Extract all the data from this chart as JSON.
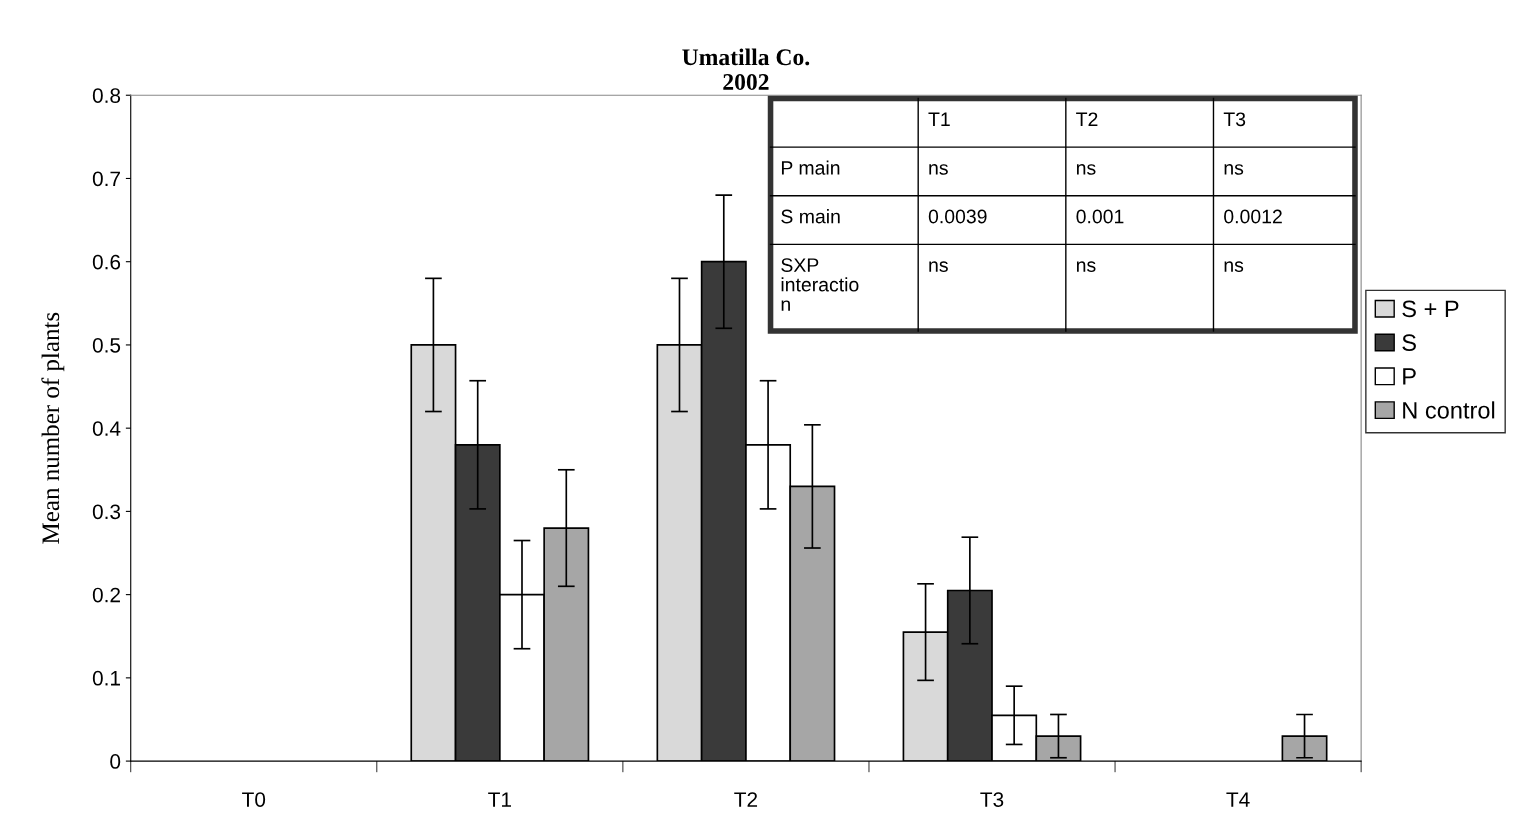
{
  "chart_data": {
    "type": "bar",
    "title": "Umatilla Co.\n2002",
    "ylabel": "Mean number of plants",
    "categories": [
      "T0",
      "T1",
      "T2",
      "T3",
      "T4"
    ],
    "series": [
      {
        "name": "S + P",
        "color": "#d9d9d9",
        "values": [
          null,
          0.5,
          0.5,
          0.155,
          null
        ],
        "errors": [
          null,
          0.08,
          0.08,
          0.058,
          null
        ]
      },
      {
        "name": "S",
        "color": "#3a3a3a",
        "values": [
          null,
          0.38,
          0.6,
          0.205,
          null
        ],
        "errors": [
          null,
          0.077,
          0.08,
          0.064,
          null
        ]
      },
      {
        "name": "P",
        "color": "#ffffff",
        "values": [
          null,
          0.2,
          0.38,
          0.055,
          null
        ],
        "errors": [
          null,
          0.065,
          0.077,
          0.035,
          null
        ]
      },
      {
        "name": "N control",
        "color": "#a6a6a6",
        "values": [
          null,
          0.28,
          0.33,
          0.03,
          0.03
        ],
        "errors": [
          null,
          0.07,
          0.074,
          0.026,
          0.026
        ]
      }
    ],
    "ylim": [
      0,
      0.8
    ],
    "yticks": [
      0,
      0.1,
      0.2,
      0.3,
      0.4,
      0.5,
      0.6,
      0.7,
      0.8
    ],
    "grid": false,
    "legend": "right",
    "annotations": [
      "T1",
      "T2",
      "T3",
      "P main",
      "ns",
      "ns",
      "ns",
      "S main",
      "0.0039",
      "0.001",
      "0.0012",
      "SXP\ninteractio\nn",
      "ns",
      "ns",
      "ns"
    ]
  }
}
